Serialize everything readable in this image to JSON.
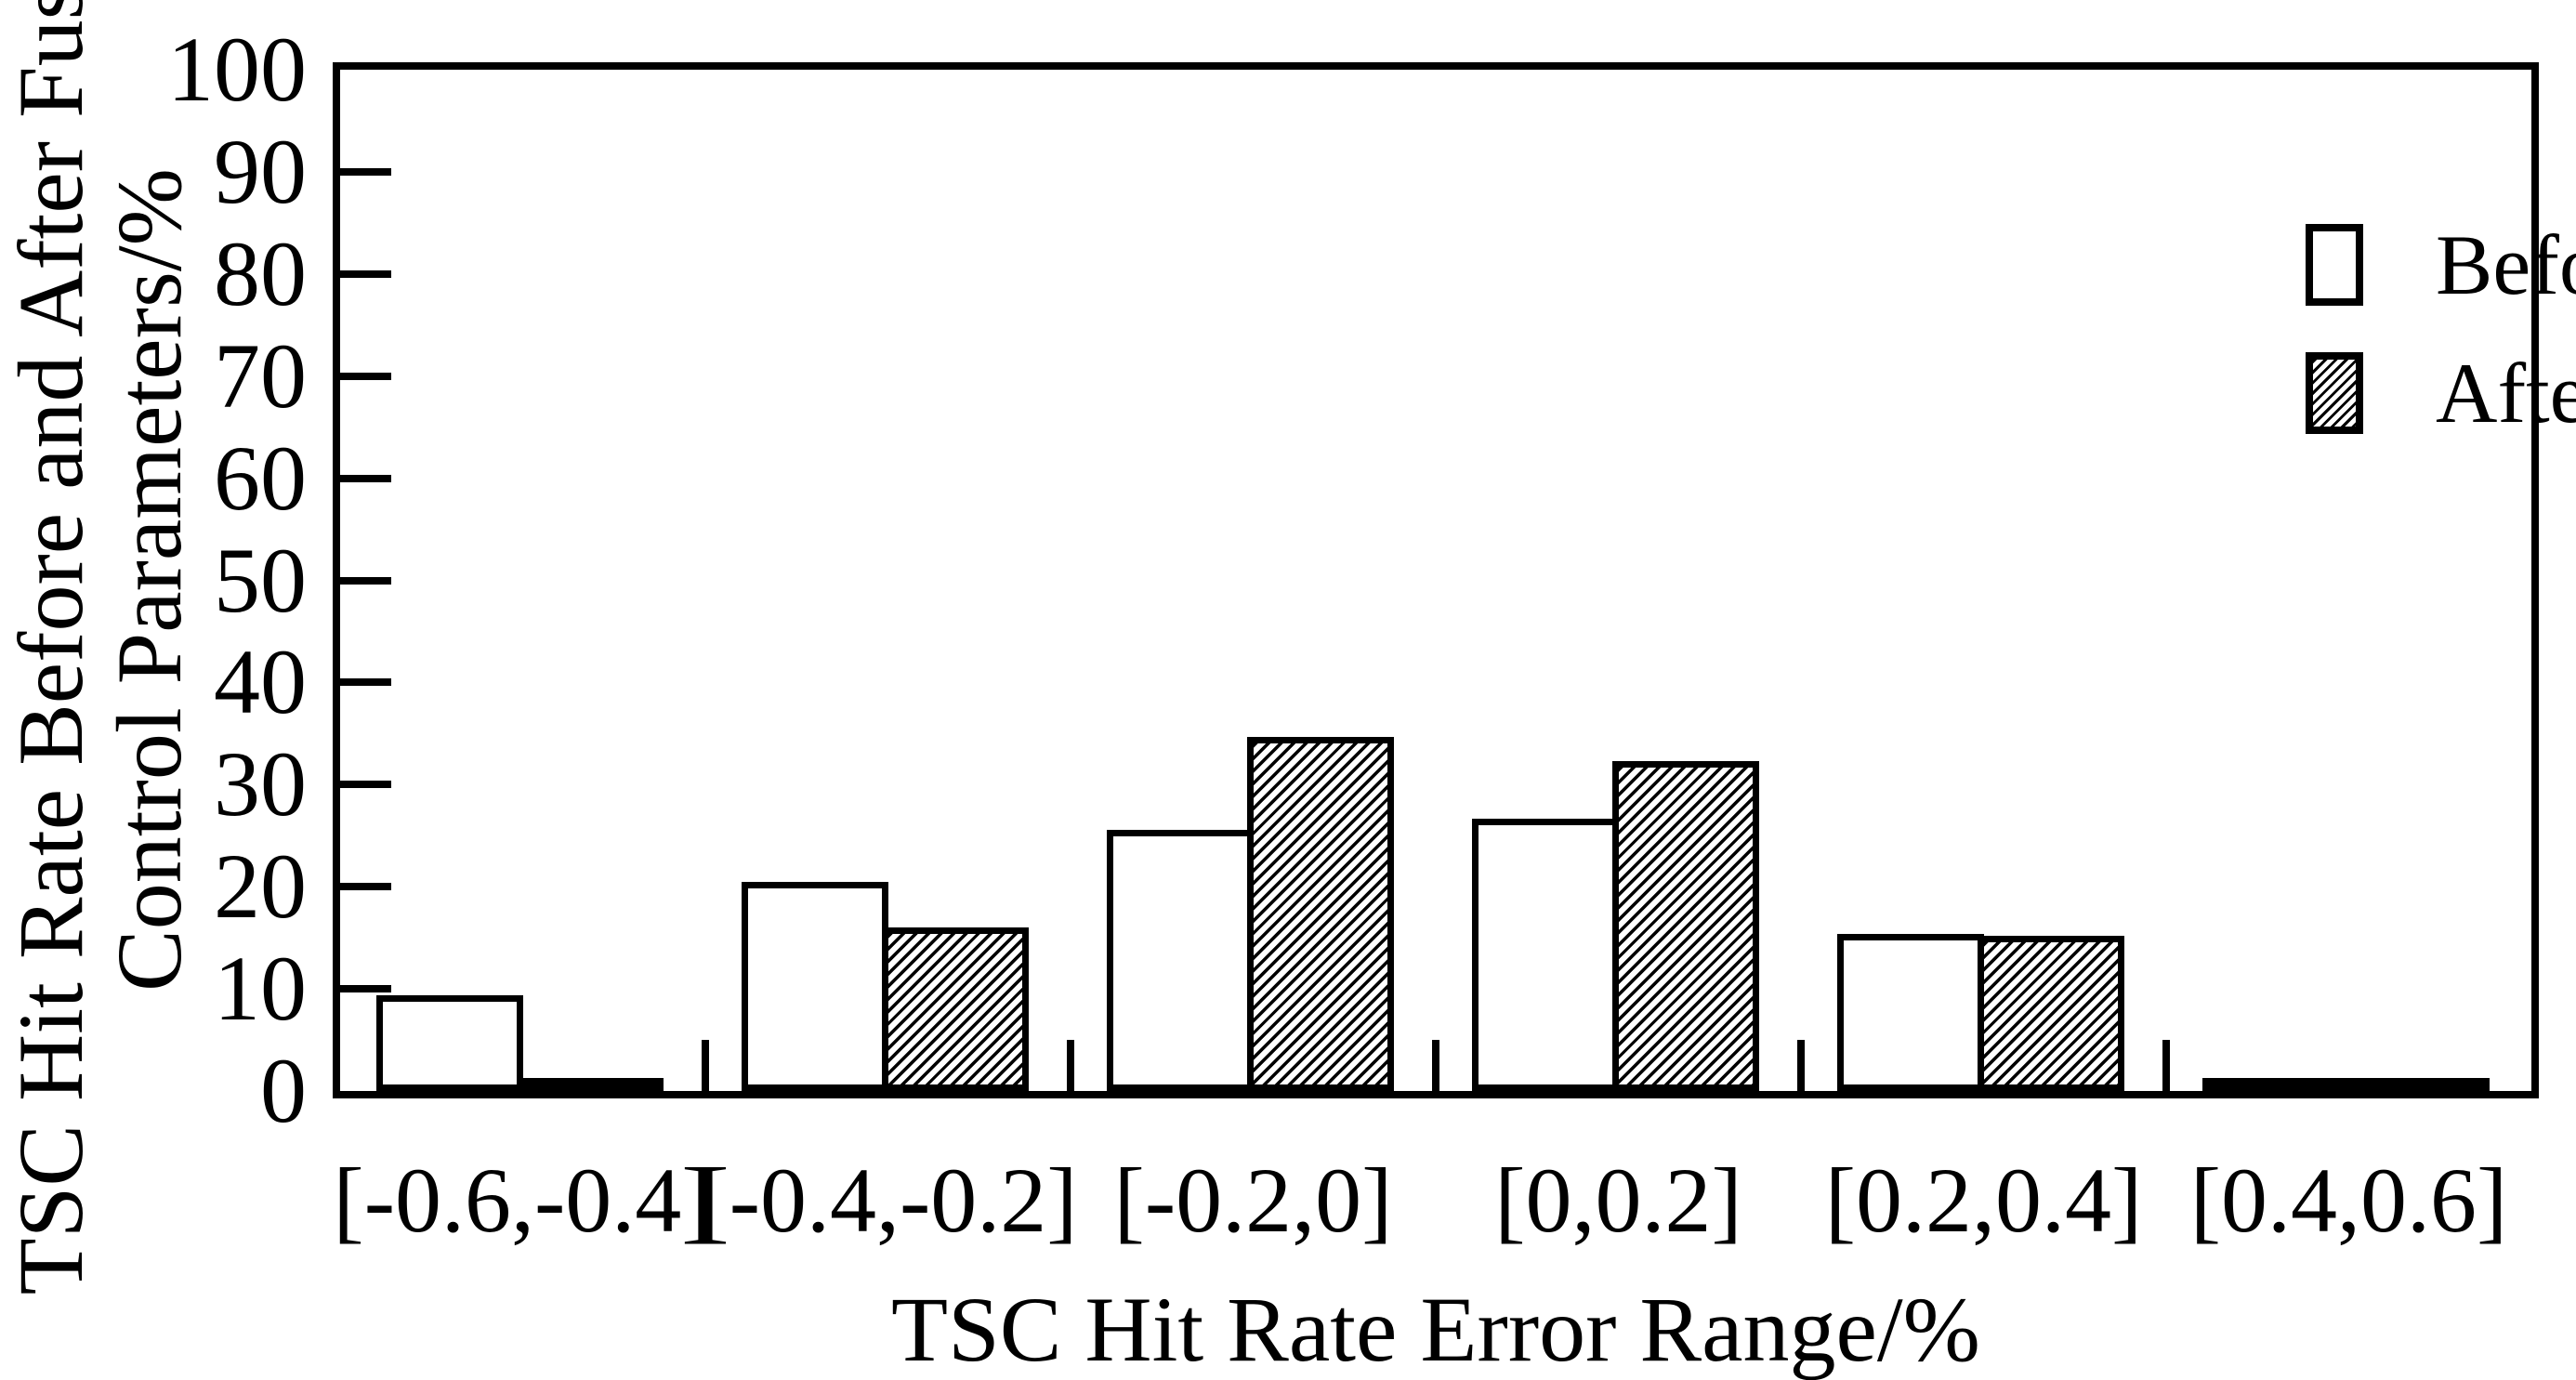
{
  "chart_data": {
    "type": "bar",
    "title": "",
    "categories": [
      "[-0.6,-0.4]",
      "[-0.4,-0.2]",
      "[-0.2,0]",
      "[0,0.2]",
      "[0.2,0.4]",
      "[0.4,0.6]"
    ],
    "series": [
      {
        "name": "Before fusion",
        "style": "white",
        "values": [
          9.4,
          20.5,
          25.6,
          26.7,
          15.4,
          0.8
        ]
      },
      {
        "name": "After fusion",
        "style": "hatch",
        "values": [
          0.3,
          16.0,
          34.7,
          32.3,
          15.2,
          1.2
        ]
      }
    ],
    "xlabel": "TSC Hit Rate Error Range/%",
    "ylabel_line1": "TSC Hit Rate Before and After Fusion",
    "ylabel_line2": "Control Parameters/%",
    "ylim": [
      0,
      100
    ],
    "yticks": [
      0,
      10,
      20,
      30,
      40,
      50,
      60,
      70,
      80,
      90,
      100
    ],
    "grid": false,
    "legend_position": "top-right-inside",
    "colors": {
      "axis": "#000000",
      "bar_outline": "#000000",
      "bar_before_fill": "#ffffff",
      "bar_after_fill": "hatch-black-on-white",
      "background": "#ffffff"
    }
  }
}
